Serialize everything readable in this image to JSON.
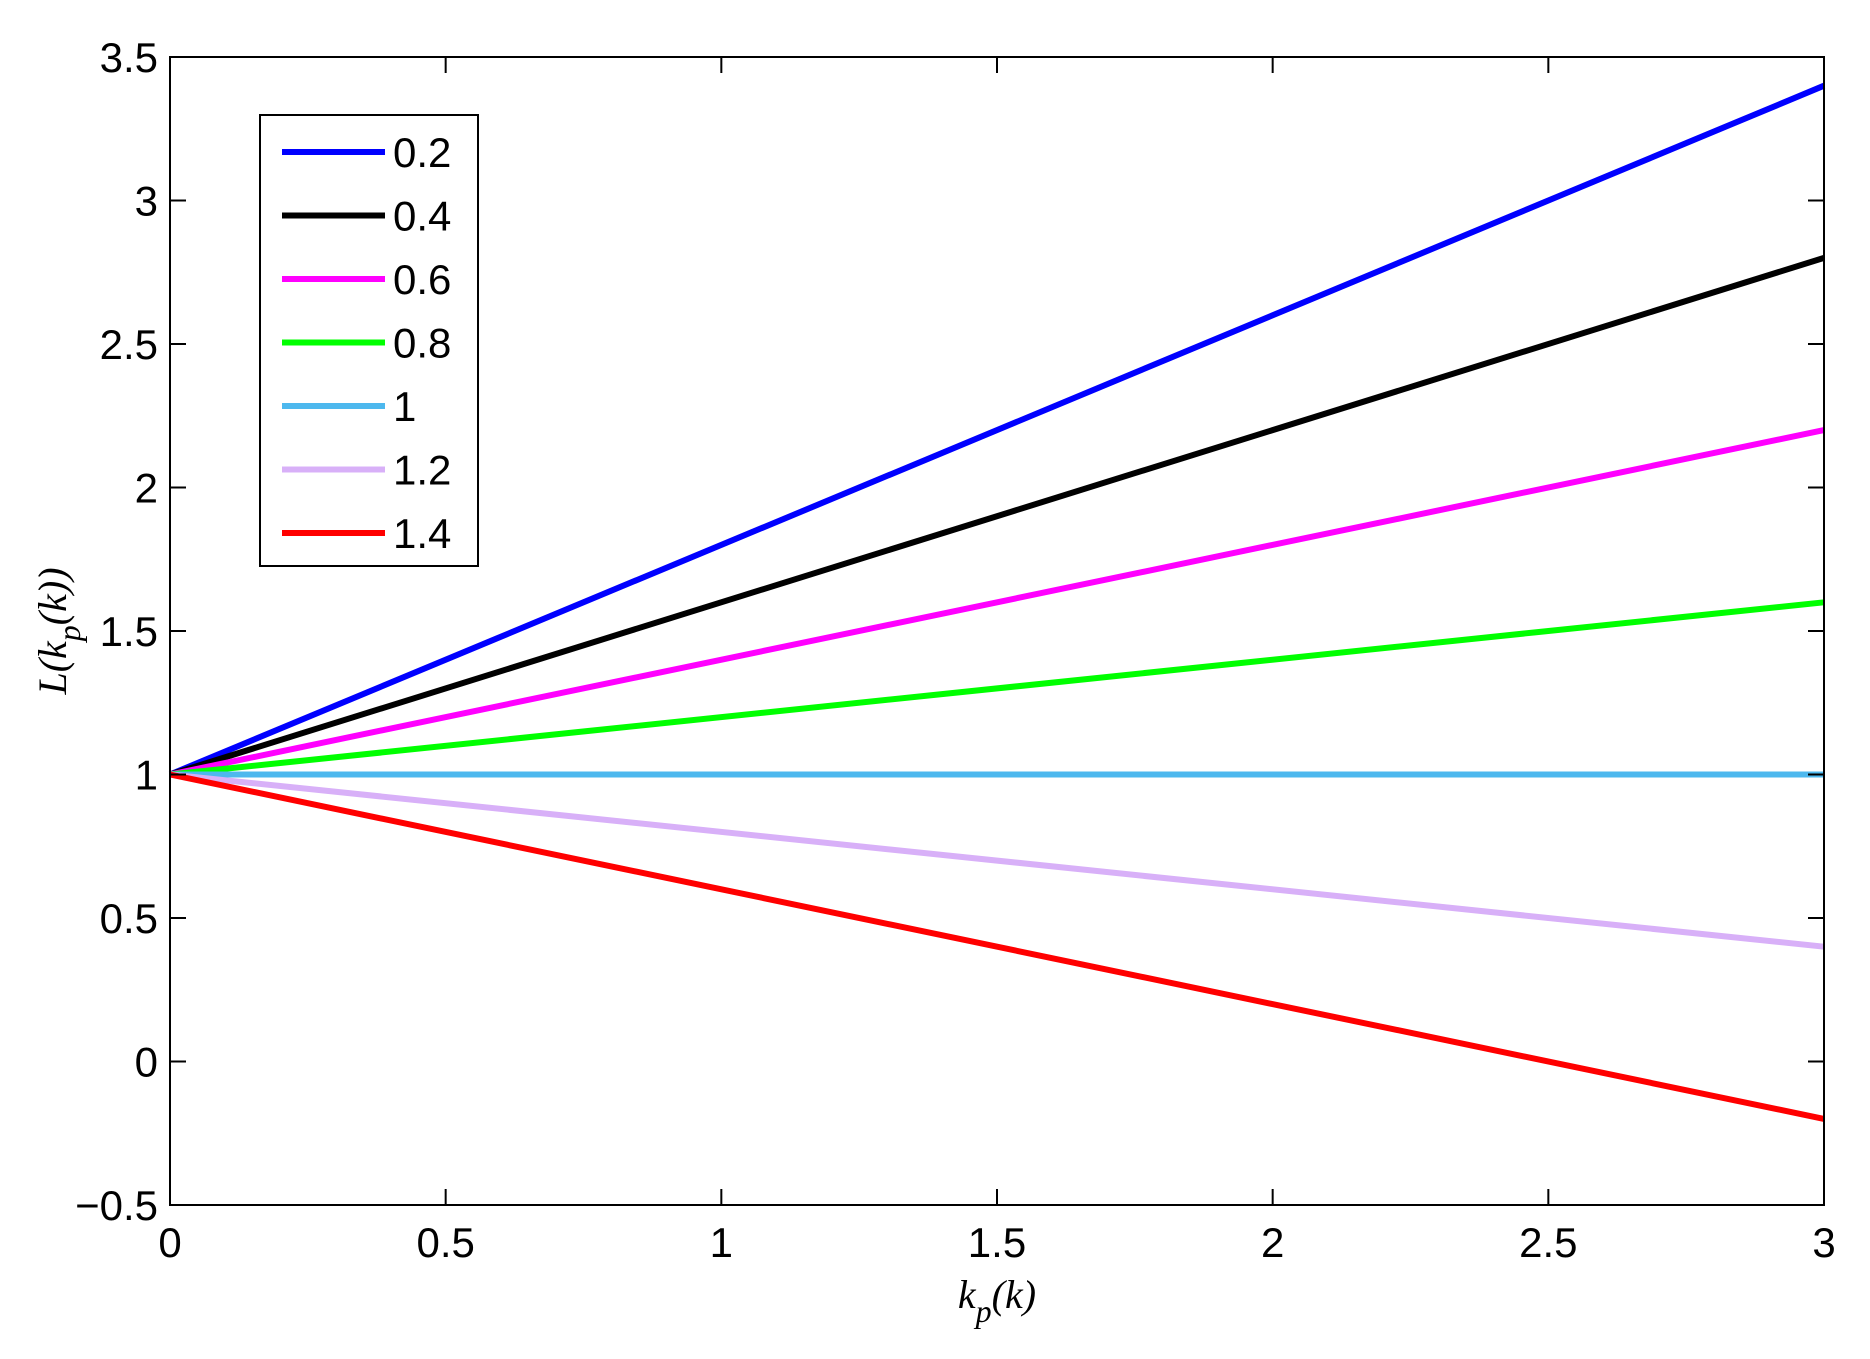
{
  "chart_data": {
    "type": "line",
    "title": "",
    "xlabel": "k_p(k)",
    "ylabel": "L(k_p(k))",
    "xlim": [
      0,
      3
    ],
    "ylim": [
      -0.5,
      3.5
    ],
    "xticks": [
      0,
      0.5,
      1,
      1.5,
      2,
      2.5,
      3
    ],
    "xtick_labels": [
      "0",
      "0.5",
      "1",
      "1.5",
      "2",
      "2.5",
      "3"
    ],
    "yticks": [
      -0.5,
      0,
      0.5,
      1,
      1.5,
      2,
      2.5,
      3,
      3.5
    ],
    "ytick_labels": [
      "−0.5",
      "0",
      "0.5",
      "1",
      "1.5",
      "2",
      "2.5",
      "3",
      "3.5"
    ],
    "grid": false,
    "legend_position": "top-left",
    "series": [
      {
        "name": "0.2",
        "color": "#0000ff",
        "x": [
          0,
          3
        ],
        "y": [
          1,
          3.4
        ]
      },
      {
        "name": "0.4",
        "color": "#000000",
        "x": [
          0,
          3
        ],
        "y": [
          1,
          2.8
        ]
      },
      {
        "name": "0.6",
        "color": "#ff00ff",
        "x": [
          0,
          3
        ],
        "y": [
          1,
          2.2
        ]
      },
      {
        "name": "0.8",
        "color": "#00ff00",
        "x": [
          0,
          3
        ],
        "y": [
          1,
          1.6
        ]
      },
      {
        "name": "1",
        "color": "#4db8ee",
        "x": [
          0,
          3
        ],
        "y": [
          1,
          1.0
        ]
      },
      {
        "name": "1.2",
        "color": "#d8b0f8",
        "x": [
          0,
          3
        ],
        "y": [
          1,
          0.4
        ]
      },
      {
        "name": "1.4",
        "color": "#ff0000",
        "x": [
          0,
          3
        ],
        "y": [
          1,
          -0.2
        ]
      }
    ]
  }
}
